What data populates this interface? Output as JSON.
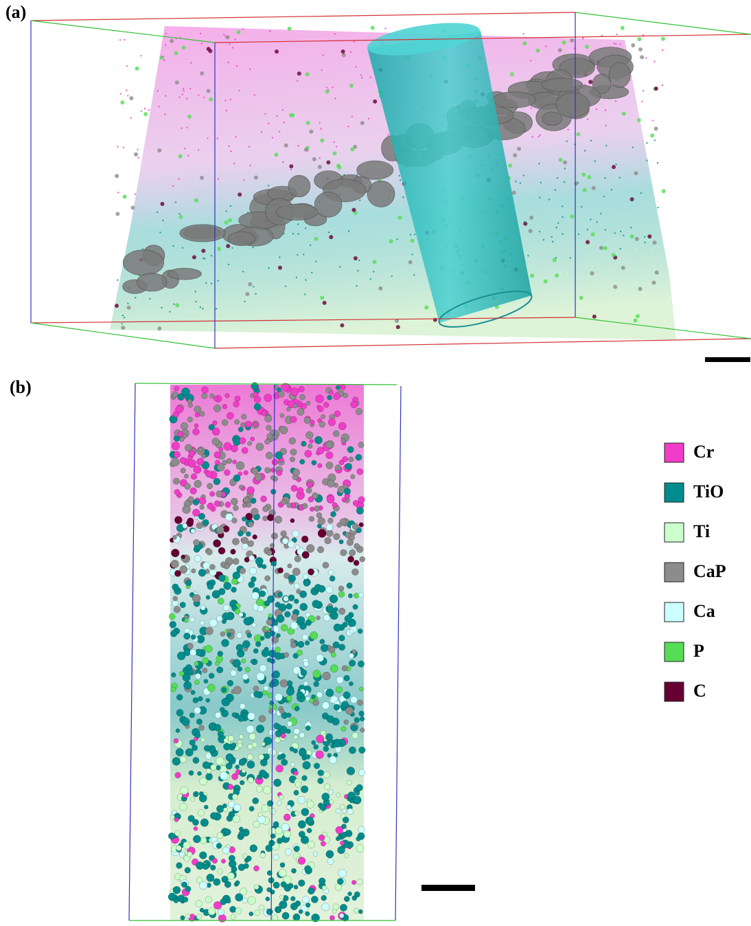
{
  "panels": [
    {
      "label": "(a)"
    },
    {
      "label": "(b)"
    }
  ],
  "legend": [
    {
      "label": "Cr",
      "color": "#f03cc8"
    },
    {
      "label": "TiO",
      "color": "#008c8c"
    },
    {
      "label": "Ti",
      "color": "#ccffcc"
    },
    {
      "label": "CaP",
      "color": "#8c8c8c"
    },
    {
      "label": "Ca",
      "color": "#ccffff"
    },
    {
      "label": "P",
      "color": "#55dd55"
    },
    {
      "label": "C",
      "color": "#660033"
    }
  ]
}
